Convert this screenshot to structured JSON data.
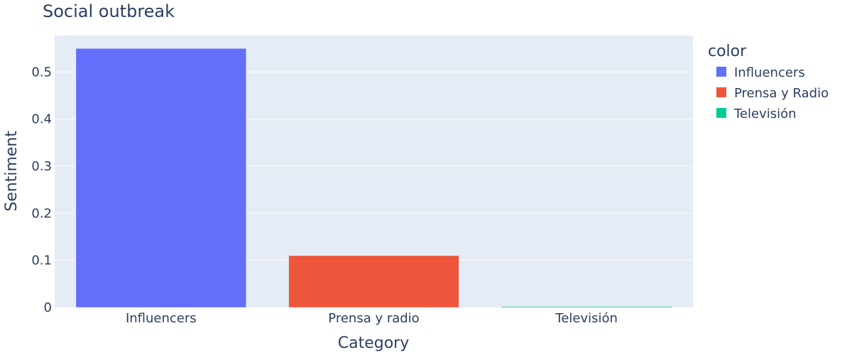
{
  "chart_data": {
    "type": "bar",
    "title": "Social outbreak",
    "xlabel": "Category",
    "ylabel": "Sentiment",
    "ylim": [
      0,
      0.55
    ],
    "yticks": [
      0,
      0.1,
      0.2,
      0.3,
      0.4,
      0.5
    ],
    "ytick_labels": [
      "0",
      "0.1",
      "0.2",
      "0.3",
      "0.4",
      "0.5"
    ],
    "categories": [
      "Influencers",
      "Prensa y radio",
      "Televisión"
    ],
    "values": [
      0.55,
      0.11,
      0.002
    ],
    "bar_colors": [
      "#636efa",
      "#ef553b",
      "#00cc96"
    ],
    "plot_background": "#e5ecf6",
    "grid": true,
    "legend": {
      "title": "color",
      "placement": "right",
      "items": [
        {
          "label": "Influencers",
          "color": "#636efa"
        },
        {
          "label": "Prensa y Radio",
          "color": "#ef553b"
        },
        {
          "label": "Televisión",
          "color": "#00cc96"
        }
      ]
    }
  }
}
